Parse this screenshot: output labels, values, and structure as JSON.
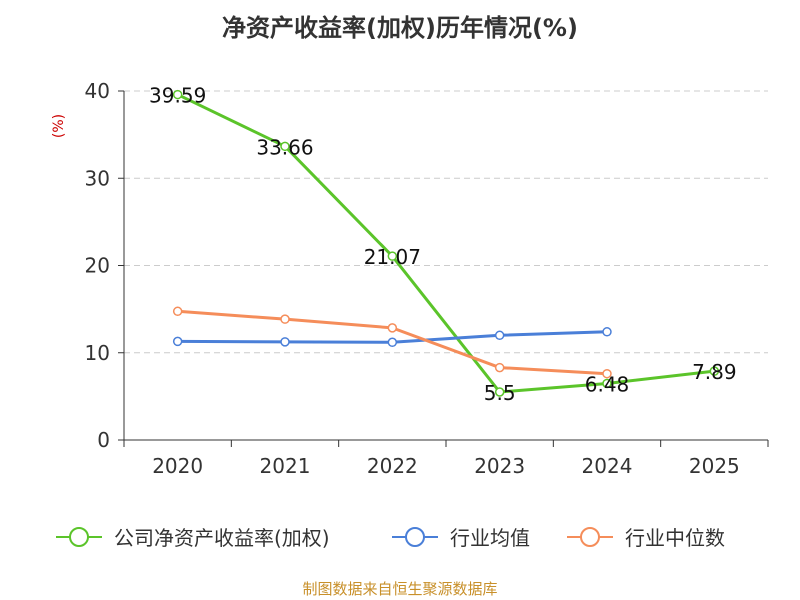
{
  "chart_data": {
    "type": "line",
    "title": "净资产收益率(加权)历年情况(%)",
    "ylabel": "(%)",
    "xlabel": "",
    "categories": [
      "2020",
      "2021",
      "2022",
      "2023",
      "2024",
      "2025"
    ],
    "ylim": [
      0,
      40
    ],
    "yticks": [
      "0",
      "10",
      "20",
      "30",
      "40"
    ],
    "grid": true,
    "legend_position": "bottom",
    "series": [
      {
        "name": "公司净资产收益率(加权)",
        "color": "#5bc42a",
        "values": [
          39.59,
          33.66,
          21.07,
          5.5,
          6.48,
          7.89
        ],
        "labels": [
          "39.59",
          "33.66",
          "21.07",
          "5.5",
          "6.48",
          "7.89"
        ]
      },
      {
        "name": "行业均值",
        "color": "#4a7fd8",
        "values": [
          11.3,
          11.25,
          11.2,
          12.0,
          12.4,
          null
        ]
      },
      {
        "name": "行业中位数",
        "color": "#f58d5a",
        "values": [
          14.75,
          13.85,
          12.85,
          8.3,
          7.6,
          null
        ]
      }
    ]
  },
  "footer": {
    "source": "制图数据来自恒生聚源数据库",
    "source_color": "#c8902a"
  },
  "colors": {
    "axis": "#333333",
    "grid": "#cccccc",
    "ylabel": "#cc0000"
  }
}
